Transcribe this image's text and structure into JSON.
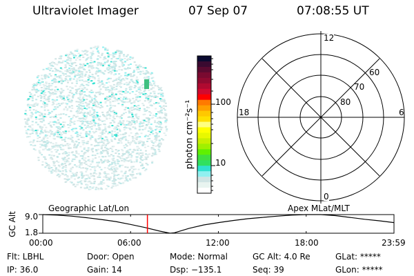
{
  "header": {
    "instrument": "Ultraviolet Imager",
    "date": "07 Sep 07",
    "time": "07:08:55 UT"
  },
  "colorbar": {
    "label": "photon cm⁻²s⁻¹",
    "ticks": [
      "100",
      "10"
    ],
    "colors": [
      "#0a0a30",
      "#3a0a30",
      "#5a0a30",
      "#7a0a30",
      "#900a30",
      "#b00a30",
      "#d00a30",
      "#ff0000",
      "#ff7a00",
      "#ffa000",
      "#ffc800",
      "#ffe000",
      "#ffff80",
      "#ffff00",
      "#e8f800",
      "#c8f000",
      "#a0f000",
      "#60f000",
      "#40e040",
      "#30e060",
      "#30e0d0",
      "#90f0f0",
      "#d0e4e4",
      "#e8f4f0",
      "#ffffff"
    ]
  },
  "polar_plot": {
    "mlt_labels": {
      "top": "12",
      "bottom": "0",
      "left": "18",
      "right": "6"
    },
    "lat_labels": [
      "60",
      "70",
      "80"
    ]
  },
  "timeline": {
    "left_label": "Geographic Lat/Lon",
    "right_label": "Apex MLat/MLT",
    "y_axis_label": "GC Alt",
    "y_ticks": [
      "9.0",
      "1.8"
    ],
    "x_ticks": [
      "00:00",
      "06:00",
      "12:00",
      "18:00",
      "23:59"
    ],
    "marker_color": "#ff0000",
    "current_time_hours": 7.15
  },
  "chart_data": {
    "type": "line",
    "xlabel": "",
    "ylabel": "GC Alt",
    "ylim": [
      1.8,
      9.0
    ],
    "xlim_hours": [
      0,
      24
    ],
    "x": [
      0,
      1,
      2,
      3,
      4,
      5,
      6,
      7,
      8,
      8.7,
      9,
      10,
      11,
      12,
      13,
      14,
      15,
      16,
      17,
      18,
      19,
      20,
      21,
      22,
      23,
      24
    ],
    "values": [
      9.0,
      8.8,
      8.4,
      7.8,
      7.1,
      6.3,
      5.2,
      4.0,
      2.6,
      1.8,
      2.0,
      3.7,
      5.0,
      5.9,
      6.7,
      7.4,
      7.9,
      8.4,
      8.8,
      9.0,
      9.0,
      8.6,
      7.9,
      7.2,
      6.6,
      5.9
    ]
  },
  "status": {
    "row1": [
      "Flt: LBHL",
      "Door: Open",
      "Mode: Normal",
      "GC Alt: 4.0 Re",
      "GLat: *****"
    ],
    "row2": [
      "IP: 36.0",
      "Gain: 14",
      "Dsp: −135.1",
      "Seq: 39",
      "GLon: *****"
    ]
  }
}
